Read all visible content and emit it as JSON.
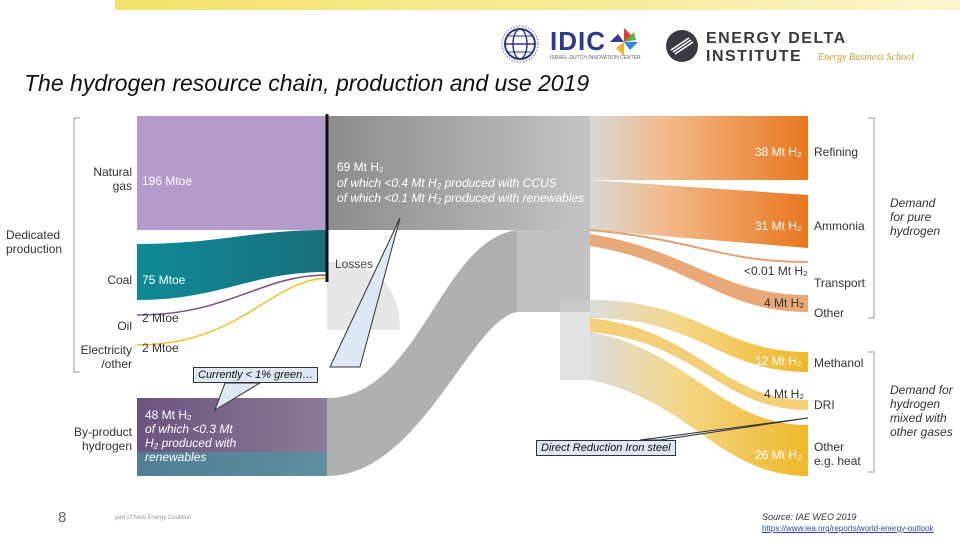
{
  "title": "The hydrogen resource chain, production and use 2019",
  "logos": {
    "idic_name": "IDIC",
    "idic_subtitle": "ISRAEL-DUTCH INNOVATION CENTER",
    "edi_line1": "ENERGY DELTA",
    "edi_line2": "INSTITUTE",
    "edi_subtitle": "Energy Business School"
  },
  "left_labels": {
    "dedicated_production": [
      "Dedicated",
      "production"
    ],
    "natural_gas": [
      "Natural",
      "gas"
    ],
    "coal": "Coal",
    "oil": "Oil",
    "electricity": [
      "Electricity",
      "/other"
    ],
    "by_product": [
      "By-product",
      "hydrogen"
    ]
  },
  "inflows": {
    "natural_gas": "196 Mtoe",
    "coal": "75 Mtoe",
    "oil": "2 Mtoe",
    "electricity": "2 Mtoe",
    "by_product": [
      "48 Mt H₂",
      "of which <0.3 Mt",
      "H₂ produced with",
      "renewables"
    ]
  },
  "central": {
    "main": "69 Mt H₂",
    "ccus": "of which <0.4 Mt H₂ produced with CCUS",
    "renewables": "of which <0.1 Mt H₂ produced with renewables",
    "losses": "Losses"
  },
  "outflows": {
    "refining": "38 Mt H₂",
    "ammonia": "31 Mt H₂",
    "transport": "<0.01 Mt H₂",
    "other_pure": "4 Mt H₂",
    "methanol": "12 Mt H₂",
    "dri": "4 Mt H₂",
    "other_mixed": "26 Mt H₂"
  },
  "right_labels": {
    "refining": "Refining",
    "ammonia": "Ammonia",
    "transport": "Transport",
    "other": "Other",
    "methanol": "Methanol",
    "dri": "DRI",
    "other_heat": [
      "Other",
      "e.g. heat"
    ],
    "demand_pure": [
      "Demand",
      "for pure",
      "hydrogen"
    ],
    "demand_mixed": [
      "Demand for",
      "hydrogen",
      "mixed with",
      "other gases"
    ]
  },
  "callouts": {
    "green": "Currently < 1% green…",
    "dri": "Direct Reduction Iron steel"
  },
  "footer": {
    "page_number": "8",
    "note": "part of New Energy Coalition",
    "source": "Source: IAE WEO 2019",
    "source_url": "https://www.iea.org/reports/world-energy-outlook"
  },
  "colors": {
    "natural_gas": "#b39ccb",
    "coal": "#0e8a96",
    "by_product": "#5e4a74",
    "orange": "#e8771f",
    "yellow": "#f0c030",
    "grey": "#9a9a9a"
  }
}
